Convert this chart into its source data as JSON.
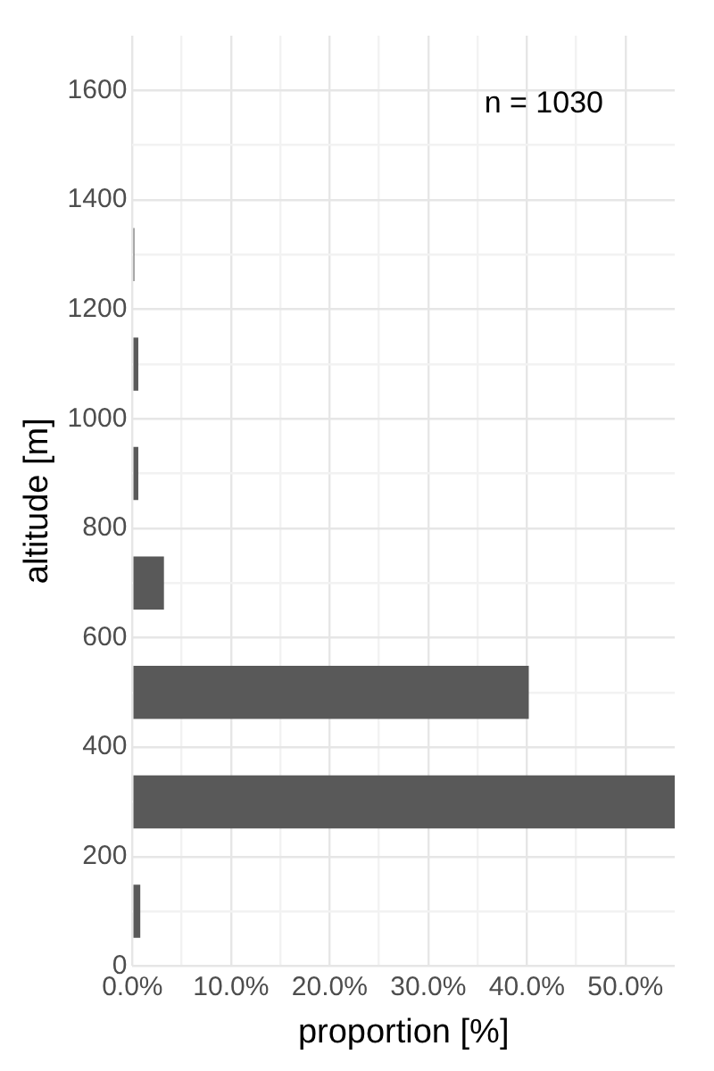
{
  "chart_data": {
    "type": "histogram",
    "orientation": "horizontal",
    "ylabel": "altitude [m]",
    "xlabel": "proportion [%]",
    "bins": [
      0,
      200,
      400,
      600,
      800,
      1000,
      1200,
      1400
    ],
    "values": [
      0.8,
      55.0,
      40.2,
      3.2,
      0.6,
      0.6,
      0.2
    ],
    "color": "#595959",
    "xlim": [
      0,
      55
    ],
    "xticks": [
      {
        "value": 0,
        "label": "0.0%"
      },
      {
        "value": 5,
        "label": null
      },
      {
        "value": 10,
        "label": "10.0%"
      },
      {
        "value": 15,
        "label": null
      },
      {
        "value": 20,
        "label": "20.0%"
      },
      {
        "value": 25,
        "label": null
      },
      {
        "value": 30,
        "label": "30.0%"
      },
      {
        "value": 35,
        "label": null
      },
      {
        "value": 40,
        "label": "40.0%"
      },
      {
        "value": 45,
        "label": null
      },
      {
        "value": 50,
        "label": "50.0%"
      }
    ],
    "ylim": [
      0,
      1700
    ],
    "yticks": [
      0,
      {
        "value": 100,
        "label": null
      },
      200,
      {
        "value": 300,
        "label": null
      },
      400,
      {
        "value": 500,
        "label": null
      },
      600,
      {
        "value": 700,
        "label": null
      },
      800,
      {
        "value": 900,
        "label": null
      },
      1000,
      {
        "value": 1100,
        "label": null
      },
      1200,
      {
        "value": 1300,
        "label": null
      },
      1400,
      {
        "value": 1500,
        "label": null
      },
      1600
    ],
    "grid": true,
    "annotations": [
      "n = 1030"
    ]
  }
}
